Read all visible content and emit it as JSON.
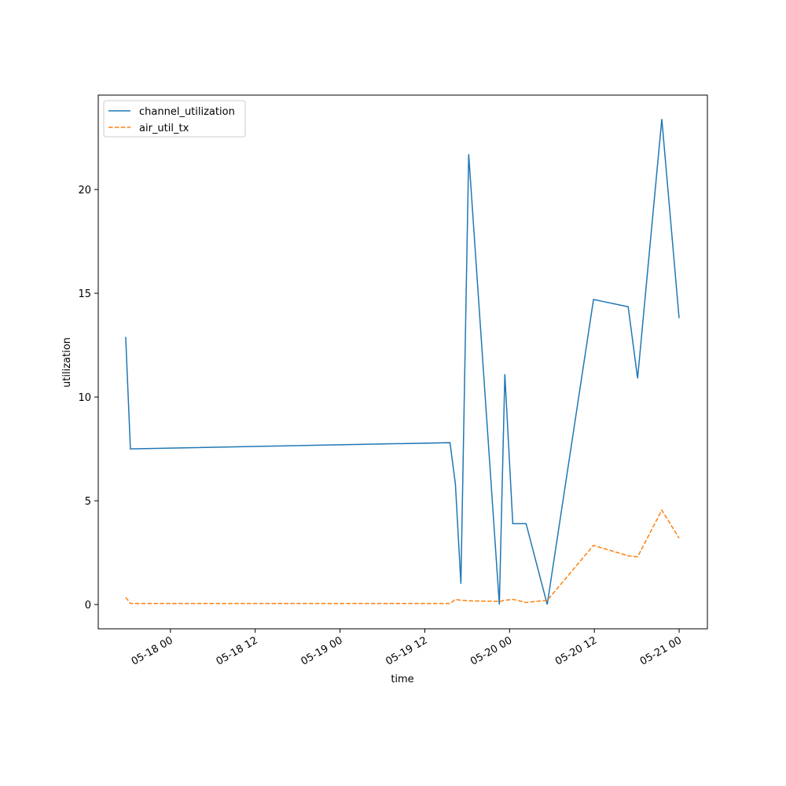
{
  "chart_data": {
    "type": "line",
    "xlabel": "time",
    "ylabel": "utilization",
    "x": [
      "05-17 17:40",
      "05-17 18:20",
      "05-19 15:34",
      "05-19 16:20",
      "05-19 17:07",
      "05-19 18:13",
      "05-19 22:33",
      "05-19 23:20",
      "05-20 00:27",
      "05-20 02:20",
      "05-20 05:20",
      "05-20 11:53",
      "05-20 16:47",
      "05-20 18:07",
      "05-20 21:33",
      "05-21 00:00"
    ],
    "series": [
      {
        "name": "channel_utilization",
        "color": "#1f77b4",
        "linestyle": "solid",
        "values": [
          12.9,
          7.5,
          7.8,
          5.8,
          1.0,
          21.7,
          0.0,
          11.1,
          3.9,
          3.9,
          0.0,
          14.7,
          14.35,
          10.9,
          23.4,
          13.8
        ]
      },
      {
        "name": "air_util_tx",
        "color": "#ff7f0e",
        "linestyle": "dashed",
        "values": [
          0.35,
          0.05,
          0.05,
          0.25,
          0.2,
          0.18,
          0.15,
          0.2,
          0.25,
          0.1,
          0.2,
          2.85,
          2.35,
          2.3,
          4.55,
          3.2
        ]
      }
    ],
    "xlim": [
      "05-17 13:47",
      "05-21 04:00"
    ],
    "xticks": [
      "05-18 00",
      "05-18 12",
      "05-19 00",
      "05-19 12",
      "05-20 00",
      "05-20 12",
      "05-21 00"
    ],
    "ylim": [
      -1.17,
      24.55
    ],
    "yticks": [
      0,
      5,
      10,
      15,
      20
    ],
    "grid": false,
    "legend": "upper left"
  }
}
